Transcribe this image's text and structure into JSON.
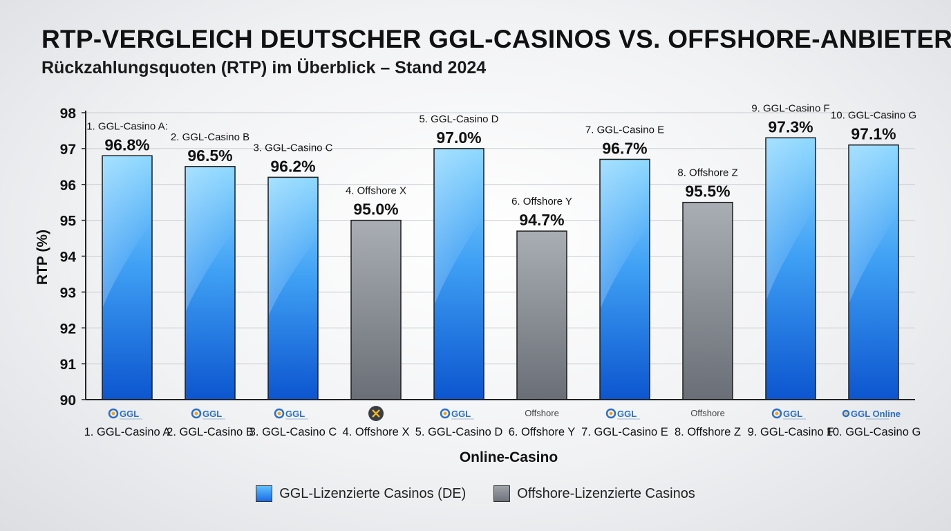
{
  "title": "RTP-VERGLEICH DEUTSCHER GGL-CASINOS VS. OFFSHORE-ANBIETER",
  "subtitle": "Rückzahlungsquoten (RTP) im Überblick – Stand 2024",
  "chart_data": {
    "type": "bar",
    "ylabel": "RTP (%)",
    "xlabel": "Online-Casino",
    "ylim": [
      90,
      98
    ],
    "yticks": [
      90,
      91,
      92,
      93,
      94,
      95,
      96,
      97,
      98
    ],
    "grid": true,
    "legend_position": "bottom-center",
    "categories": [
      "1. GGL-Casino A",
      "2. GGL-Casino B",
      "3. GGL-Casino C",
      "4. Offshore X",
      "5. GGL-Casino D",
      "6. Offshore Y",
      "7. GGL-Casino E",
      "8. Offshore Z",
      "9. GGL-Casino F",
      "10. GGL-Casino G"
    ],
    "top_labels": [
      "1. GGL-Casino A:",
      "2. GGL-Casino B",
      "3. GGL-Casino C",
      "4. Offshore X",
      "5. GGL-Casino D",
      "6. Offshore Y",
      "7. GGL-Casino E",
      "8. Offshore Z",
      "9. GGL-Casino F",
      "10. GGL-Casino G"
    ],
    "values": [
      96.8,
      96.5,
      96.2,
      95.0,
      97.0,
      94.7,
      96.7,
      95.5,
      97.3,
      97.1
    ],
    "value_labels": [
      "96.8%",
      "96.5%",
      "96.2%",
      "95.0%",
      "97.0%",
      "94.7%",
      "96.7%",
      "95.5%",
      "97.3%",
      "97.1%"
    ],
    "groups": [
      "ggl",
      "ggl",
      "ggl",
      "offshore",
      "ggl",
      "offshore",
      "ggl",
      "offshore",
      "ggl",
      "ggl"
    ],
    "logos": [
      {
        "type": "ggl-logo",
        "text": "GGL"
      },
      {
        "type": "ggl-logo",
        "text": "GGL"
      },
      {
        "type": "ggl-logo",
        "text": "GGL"
      },
      {
        "type": "offshore-x-logo",
        "text": ""
      },
      {
        "type": "ggl-logo",
        "text": "GGL"
      },
      {
        "type": "offshore-text-logo",
        "text": "Offshore"
      },
      {
        "type": "ggl-logo",
        "text": "GGL"
      },
      {
        "type": "offshore-text-logo",
        "text": "Offshore"
      },
      {
        "type": "ggl-logo",
        "text": "GGL"
      },
      {
        "type": "ggl-small-logo",
        "text": "GGL Online"
      }
    ],
    "legend": [
      {
        "name": "GGL-Lizenzierte Casinos (DE)",
        "group": "ggl"
      },
      {
        "name": "Offshore-Lizenzierte Casinos",
        "group": "offshore"
      }
    ],
    "colors": {
      "ggl_top": "#6fcaff",
      "ggl_bottom": "#0f5fd8",
      "offshore_top": "#a3a8ae",
      "offshore_bottom": "#6b7078"
    }
  }
}
